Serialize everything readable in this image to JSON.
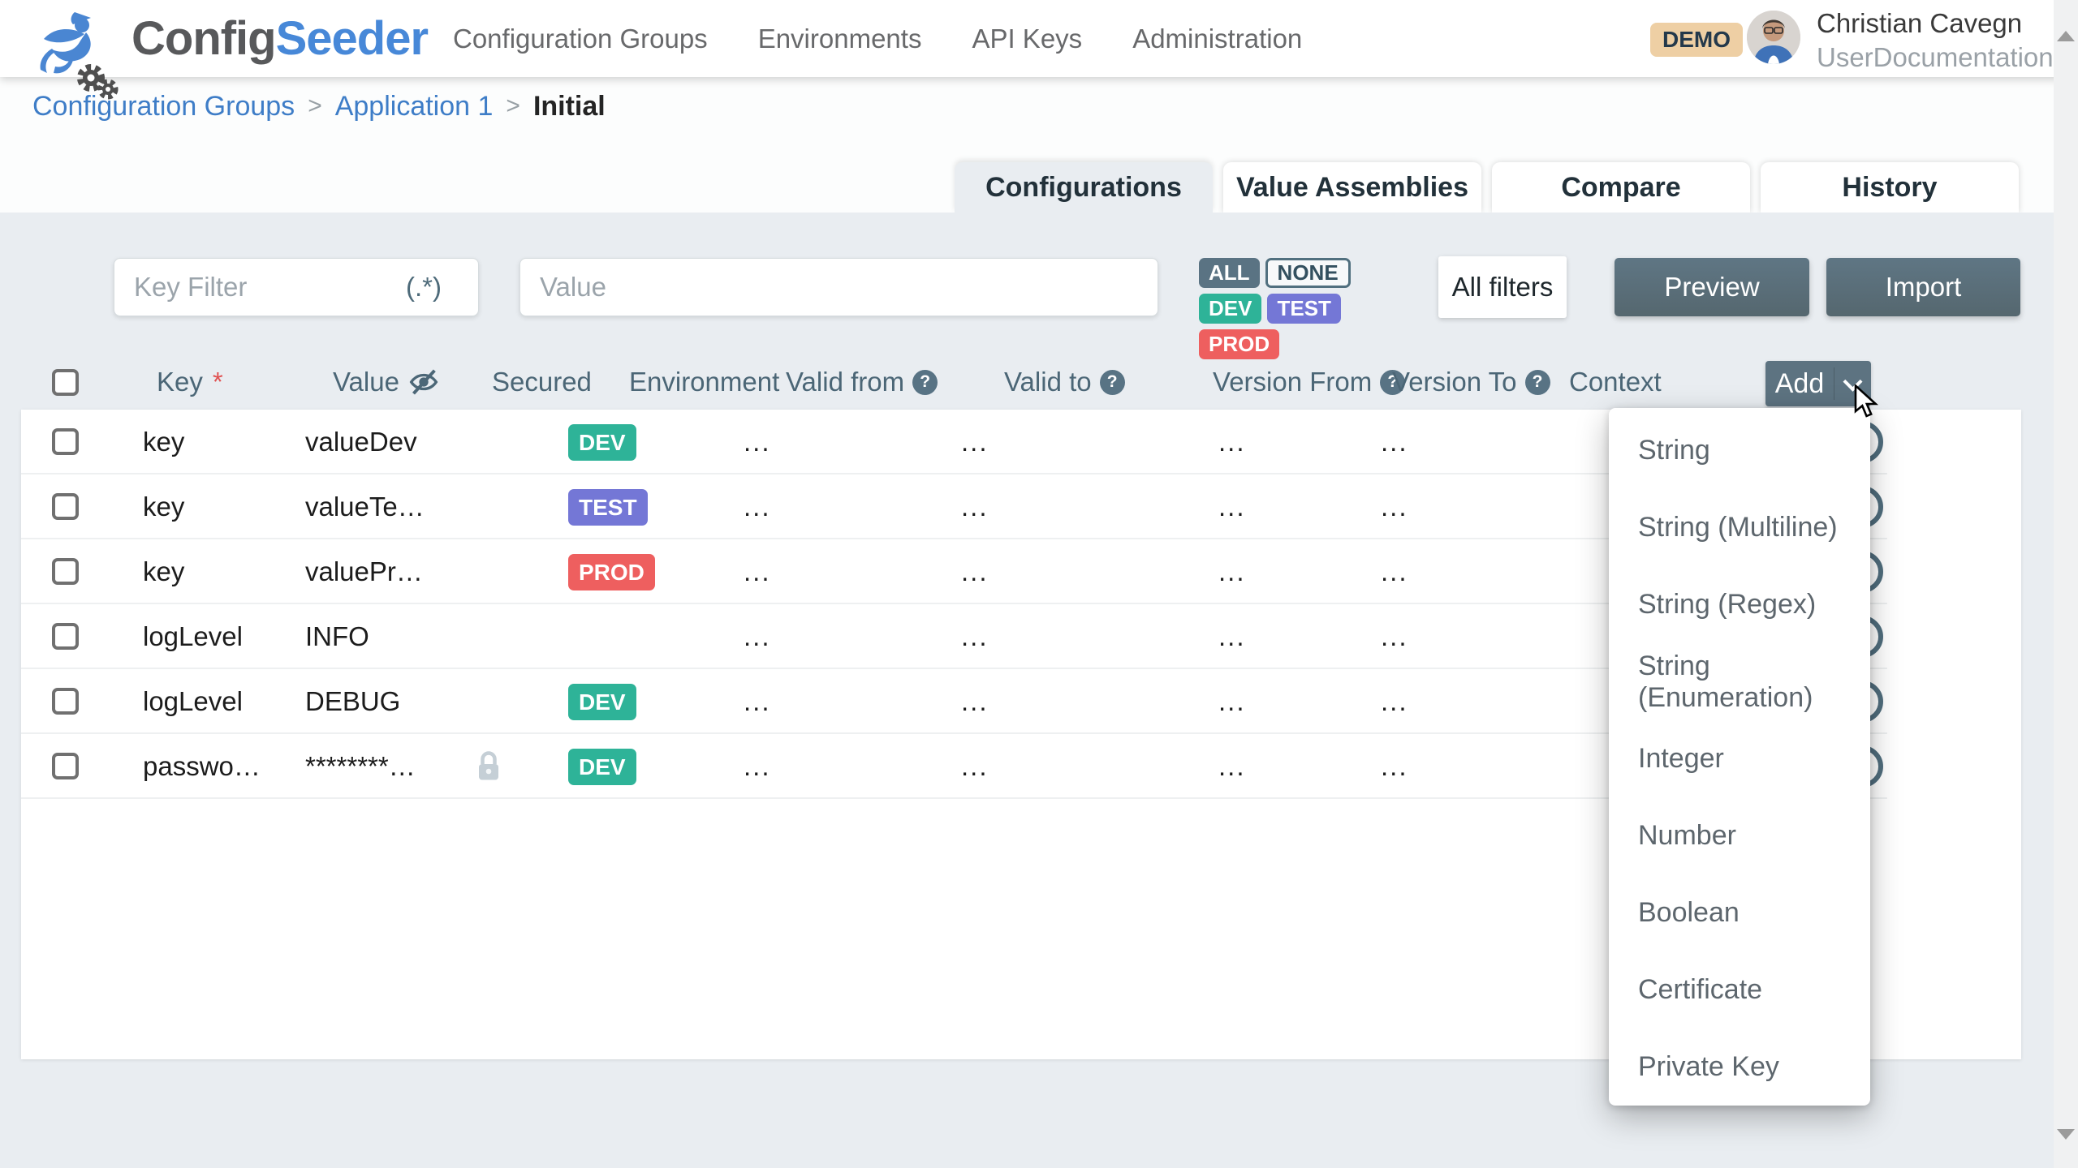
{
  "header": {
    "logo": {
      "config": "Config",
      "seeder": "Seeder"
    },
    "nav": [
      {
        "label": "Configuration Groups"
      },
      {
        "label": "Environments"
      },
      {
        "label": "API Keys"
      },
      {
        "label": "Administration"
      }
    ],
    "demo_badge": "DEMO",
    "user": {
      "name": "Christian Cavegn",
      "org": "UserDocumentation"
    }
  },
  "breadcrumb": {
    "separator": ">",
    "items": [
      {
        "label": "Configuration Groups",
        "current": false
      },
      {
        "label": "Application 1",
        "current": false
      },
      {
        "label": "Initial",
        "current": true
      }
    ]
  },
  "tabs": [
    {
      "label": "Configurations",
      "active": true
    },
    {
      "label": "Value Assemblies",
      "active": false
    },
    {
      "label": "Compare",
      "active": false
    },
    {
      "label": "History",
      "active": false
    }
  ],
  "filters": {
    "key_filter": {
      "placeholder": "Key Filter",
      "value": "",
      "suffix": "(.*)"
    },
    "value_filter": {
      "placeholder": "Value",
      "value": ""
    },
    "env_toggles": [
      {
        "label": "ALL",
        "variant": "solid",
        "color": "#5a7383"
      },
      {
        "label": "NONE",
        "variant": "outline",
        "color": "#51707f"
      },
      {
        "label": "DEV",
        "variant": "solid",
        "color": "#2eb398"
      },
      {
        "label": "TEST",
        "variant": "solid",
        "color": "#7477d6"
      },
      {
        "label": "PROD",
        "variant": "solid",
        "color": "#ee5f5f"
      }
    ],
    "all_filters_label": "All filters",
    "preview_label": "Preview",
    "import_label": "Import"
  },
  "table": {
    "columns": [
      {
        "label": "Key",
        "required": true
      },
      {
        "label": "Value",
        "eye": true
      },
      {
        "label": "Secured"
      },
      {
        "label": "Environment"
      },
      {
        "label": "Valid from",
        "help": true
      },
      {
        "label": "Valid to",
        "help": true
      },
      {
        "label": "Version From",
        "help": true
      },
      {
        "label": "Version To",
        "help": true
      },
      {
        "label": "Context"
      }
    ],
    "help_glyph": "?",
    "add_button": "Add",
    "rows": [
      {
        "key": "key",
        "value": "valueDev",
        "secured": false,
        "env": "DEV",
        "valid_from": "...",
        "valid_to": "...",
        "version_from": "...",
        "version_to": "...",
        "context": ""
      },
      {
        "key": "key",
        "value": "valueTe…",
        "secured": false,
        "env": "TEST",
        "valid_from": "...",
        "valid_to": "...",
        "version_from": "...",
        "version_to": "...",
        "context": ""
      },
      {
        "key": "key",
        "value": "valuePr…",
        "secured": false,
        "env": "PROD",
        "valid_from": "...",
        "valid_to": "...",
        "version_from": "...",
        "version_to": "...",
        "context": ""
      },
      {
        "key": "logLevel",
        "value": "INFO",
        "secured": false,
        "env": "",
        "valid_from": "...",
        "valid_to": "...",
        "version_from": "...",
        "version_to": "...",
        "context": ""
      },
      {
        "key": "logLevel",
        "value": "DEBUG",
        "secured": false,
        "env": "DEV",
        "valid_from": "...",
        "valid_to": "...",
        "version_from": "...",
        "version_to": "...",
        "context": ""
      },
      {
        "key": "passwo…",
        "value": "********…",
        "secured": true,
        "env": "DEV",
        "valid_from": "...",
        "valid_to": "...",
        "version_from": "...",
        "version_to": "...",
        "context": ""
      }
    ]
  },
  "add_menu": {
    "items": [
      "String",
      "String (Multiline)",
      "String (Regex)",
      "String (Enumeration)",
      "Integer",
      "Number",
      "Boolean",
      "Certificate",
      "Private Key"
    ]
  },
  "colors": {
    "env": {
      "DEV": "#2eb398",
      "TEST": "#7477d6",
      "PROD": "#ee5f5f"
    },
    "slate": "#5d7381",
    "link": "#3e7dc7",
    "demo_bg": "#eecfa4",
    "content_bg": "#e9edf1"
  }
}
